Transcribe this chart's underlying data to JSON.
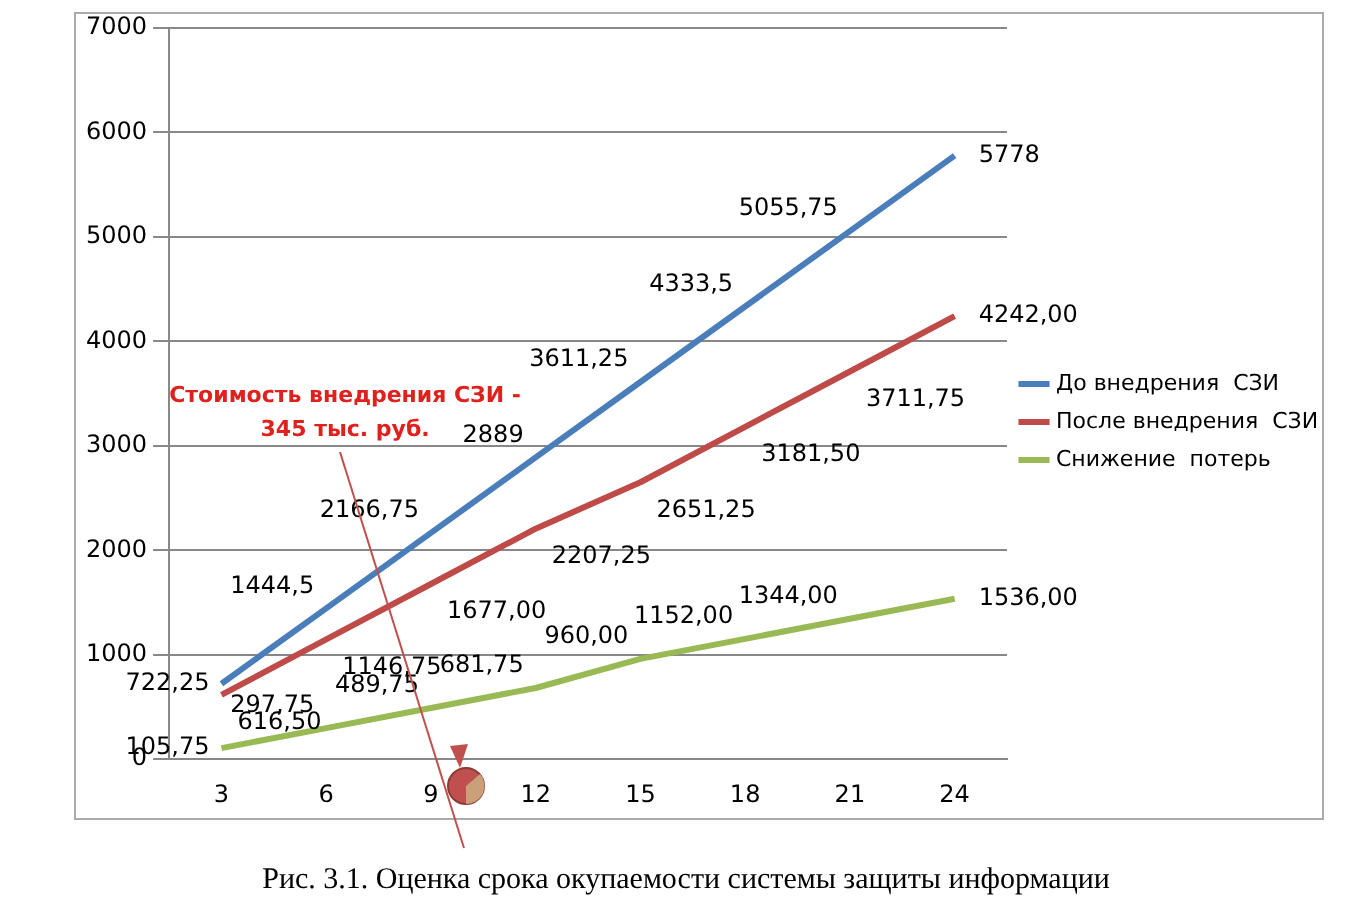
{
  "chart_data": {
    "type": "line",
    "categories": [
      "3",
      "6",
      "9",
      "12",
      "15",
      "18",
      "21",
      "24"
    ],
    "series": [
      {
        "name": "До внедрения  СЗИ",
        "color": "#4a7ebb",
        "values": [
          722.25,
          1444.5,
          2166.75,
          2889,
          3611.25,
          4333.5,
          5055.75,
          5778
        ],
        "value_labels": [
          "722,25",
          "1444,5",
          "2166,75",
          "2889",
          "3611,25",
          "4333,5",
          "5055,75",
          "5778"
        ]
      },
      {
        "name": "После внедрения  СЗИ",
        "color": "#be4b48",
        "values": [
          616.5,
          1146.75,
          1677,
          2207.25,
          2651.25,
          3181.5,
          3711.75,
          4242
        ],
        "value_labels": [
          "616,50",
          "1146,75",
          "1677,00",
          "2207,25",
          "2651,25",
          "3181,50",
          "3711,75",
          "4242,00"
        ]
      },
      {
        "name": "Снижение  потерь",
        "color": "#98b954",
        "values": [
          105.75,
          297.75,
          489.75,
          681.75,
          960,
          1152,
          1344,
          1536
        ],
        "value_labels": [
          "105,75",
          "297,75",
          "489,75",
          "681,75",
          "960,00",
          "1152,00",
          "1344,00",
          "1536,00"
        ]
      }
    ],
    "ylim": [
      0,
      7000
    ],
    "yticks": [
      0,
      1000,
      2000,
      3000,
      4000,
      5000,
      6000,
      7000
    ],
    "grid": "y",
    "legend": "right",
    "marker": "none",
    "line_style": "solid",
    "annotations": [
      "Стоимость внедрения СЗИ -\n345 тыс. руб.",
      "Рис. 3.1. Оценка срока окупаемости системы защиты информации"
    ]
  }
}
